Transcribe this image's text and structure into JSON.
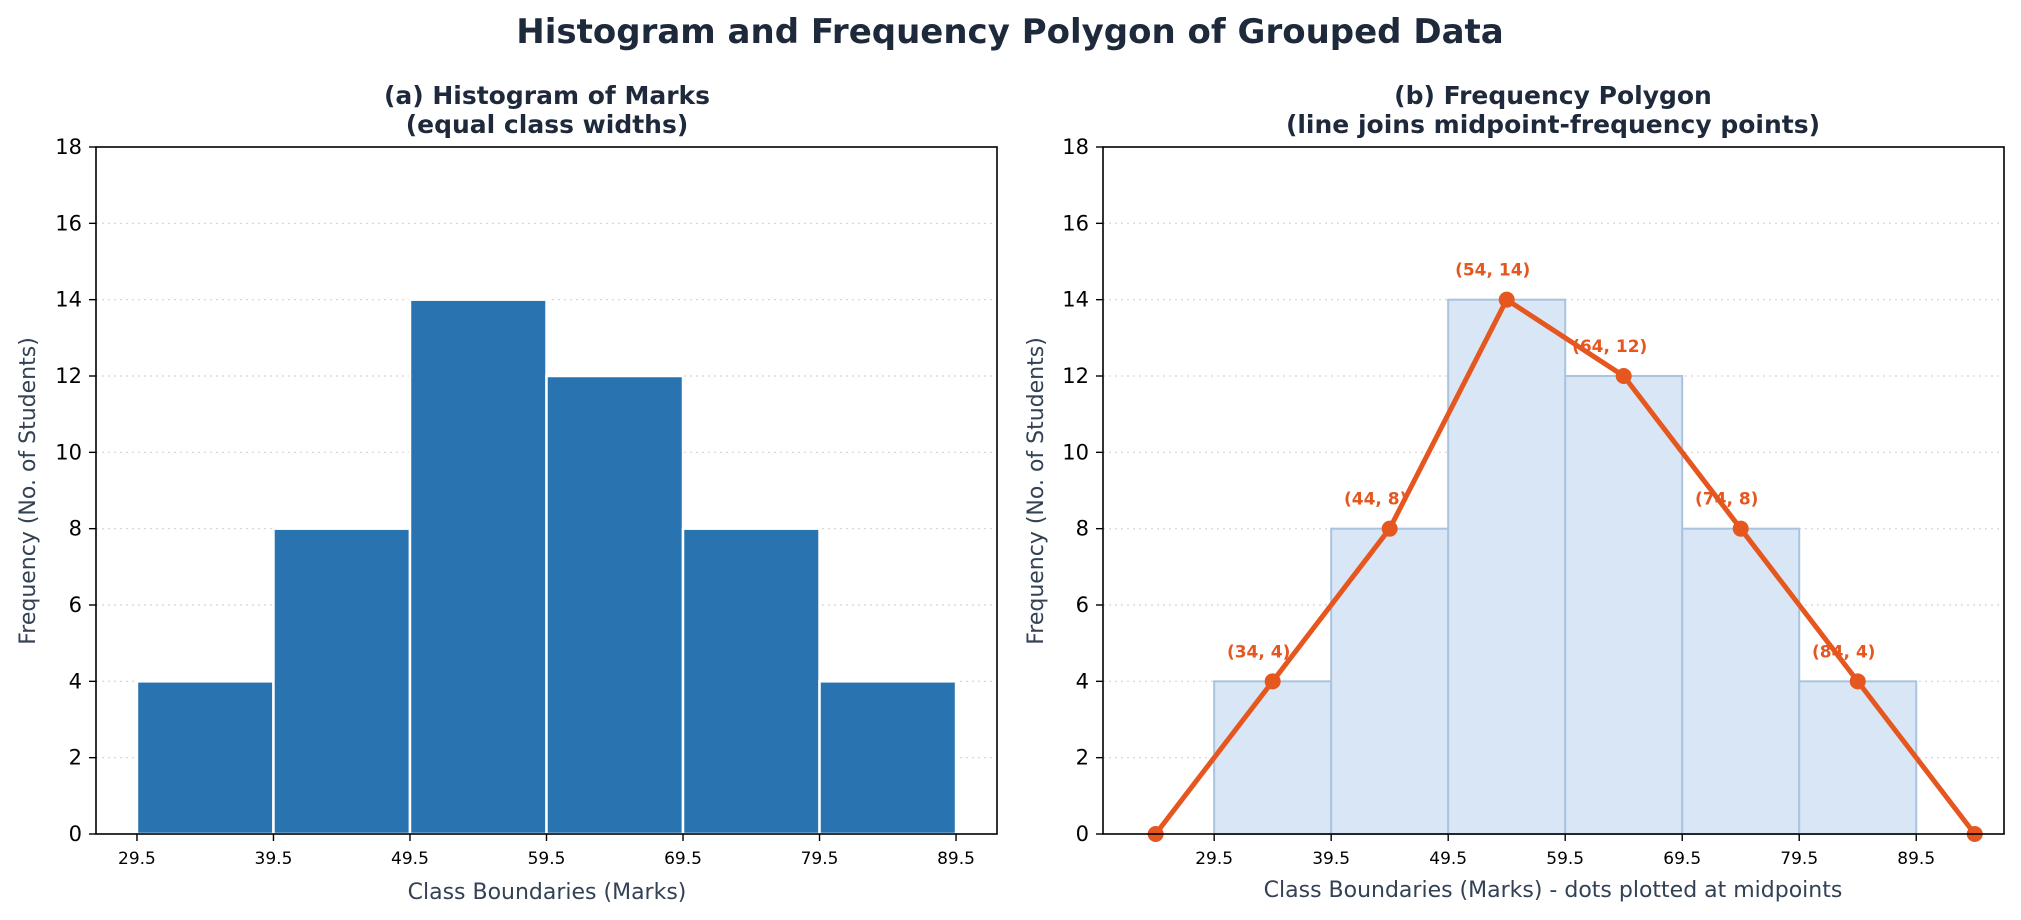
{
  "figure": {
    "title": "Histogram and Frequency Polygon of Grouped Data"
  },
  "chart_data": [
    {
      "type": "bar",
      "title": "(a) Histogram of Marks",
      "subtitle": "(equal class widths)",
      "xlabel": "Class Boundaries (Marks)",
      "ylabel": "Frequency (No. of Students)",
      "bin_edges": [
        29.5,
        39.5,
        49.5,
        59.5,
        69.5,
        79.5,
        89.5
      ],
      "xticks": [
        "29.5",
        "39.5",
        "49.5",
        "59.5",
        "69.5",
        "79.5",
        "89.5"
      ],
      "values": [
        4,
        8,
        14,
        12,
        8,
        4
      ],
      "xlim": [
        26.5,
        92.5
      ],
      "ylim": [
        0,
        18
      ],
      "yticks": [
        0,
        2,
        4,
        6,
        8,
        10,
        12,
        14,
        16,
        18
      ],
      "grid": "y-dotted",
      "bar_color": "#2873b0"
    },
    {
      "type": "line",
      "title": "(b) Frequency Polygon",
      "subtitle": "(line joins midpoint-frequency points)",
      "xlabel": "Class Boundaries (Marks) - dots plotted at midpoints",
      "ylabel": "Frequency (No. of Students)",
      "bin_edges": [
        29.5,
        39.5,
        49.5,
        59.5,
        69.5,
        79.5,
        89.5
      ],
      "xticks": [
        "29.5",
        "39.5",
        "49.5",
        "59.5",
        "69.5",
        "79.5",
        "89.5"
      ],
      "bar_values": [
        4,
        8,
        14,
        12,
        8,
        4
      ],
      "x": [
        24.5,
        34.5,
        44.5,
        54.5,
        64.5,
        74.5,
        84.5,
        94.5
      ],
      "y": [
        0,
        4,
        8,
        14,
        12,
        8,
        4,
        0
      ],
      "point_labels": [
        "",
        "(34, 4)",
        "(44, 8)",
        "(54, 14)",
        "(64, 12)",
        "(74, 8)",
        "(84, 4)",
        ""
      ],
      "xlim": [
        20.0,
        97.0
      ],
      "ylim": [
        0,
        18
      ],
      "yticks": [
        0,
        2,
        4,
        6,
        8,
        10,
        12,
        14,
        16,
        18
      ],
      "grid": "y-dotted",
      "line_color": "#e5571f",
      "bar_fill": "#d9e6f6",
      "bar_edge": "#a9c3e0"
    }
  ]
}
